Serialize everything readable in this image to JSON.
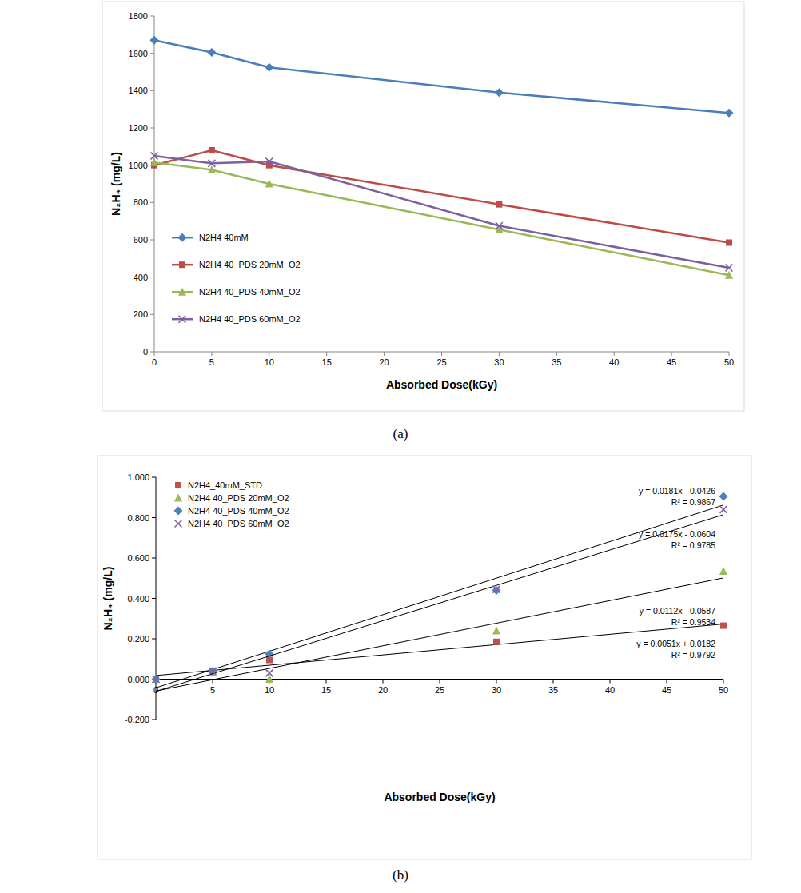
{
  "chart_data": [
    {
      "type": "line",
      "caption": "(a)",
      "x_label": "Absorbed Dose(kGy)",
      "y_label": "N₂H₄ (mg/L)",
      "x": [
        0,
        5,
        10,
        30,
        50
      ],
      "xlim": [
        0,
        50
      ],
      "xticks": [
        0,
        5,
        10,
        15,
        20,
        25,
        30,
        35,
        40,
        45,
        50
      ],
      "ylim": [
        0,
        1800
      ],
      "yticks": [
        0,
        200,
        400,
        600,
        800,
        1000,
        1200,
        1400,
        1600,
        1800
      ],
      "grid": false,
      "legend": "left",
      "series": [
        {
          "name": "N2H4 40mM",
          "color": "#4a7ebb",
          "marker": "diamond",
          "values": [
            1670,
            1605,
            1525,
            1390,
            1280
          ]
        },
        {
          "name": "N2H4 40_PDS 20mM_O2",
          "color": "#be4b48",
          "marker": "square",
          "values": [
            1000,
            1080,
            1000,
            790,
            585
          ]
        },
        {
          "name": "N2H4 40_PDS 40mM_O2",
          "color": "#98b954",
          "marker": "triangle",
          "values": [
            1015,
            975,
            900,
            655,
            410
          ]
        },
        {
          "name": "N2H4 40_PDS 60mM_O2",
          "color": "#7d60a0",
          "marker": "x",
          "values": [
            1050,
            1010,
            1020,
            675,
            450
          ]
        }
      ]
    },
    {
      "type": "scatter",
      "caption": "(b)",
      "x_label": "Absorbed Dose(kGy)",
      "y_label": "N₂H₄ (mg/L)",
      "x": [
        0,
        5,
        10,
        30,
        50
      ],
      "xlim": [
        0,
        50
      ],
      "xticks": [
        0,
        5,
        10,
        15,
        20,
        25,
        30,
        35,
        40,
        45,
        50
      ],
      "ylim": [
        -0.2,
        1.0
      ],
      "yticks": [
        {
          "value": -0.2,
          "label": "-0.200"
        },
        {
          "value": 0,
          "label": "0.000"
        },
        {
          "value": 0.2,
          "label": "0.200"
        },
        {
          "value": 0.4,
          "label": "0.400"
        },
        {
          "value": 0.6,
          "label": "0.600"
        },
        {
          "value": 0.8,
          "label": "0.800"
        },
        {
          "value": 1.0,
          "label": "1.000"
        }
      ],
      "grid": false,
      "legend": "top-left",
      "series": [
        {
          "name": "N2H4_40mM_STD",
          "color": "#c0504d",
          "marker": "square",
          "values": [
            0,
            0.04,
            0.095,
            0.185,
            0.265
          ],
          "trendline": {
            "slope": 0.0051,
            "intercept": 0.0182,
            "equation": "y = 0.0051x + 0.0182",
            "r2_label": "R² = 0.9792"
          }
        },
        {
          "name": "N2H4 40_PDS 20mM_O2",
          "color": "#9bbb59",
          "marker": "triangle",
          "values": [
            0,
            0.035,
            0.0,
            0.24,
            0.535
          ],
          "trendline": {
            "slope": 0.0112,
            "intercept": -0.0587,
            "equation": "y = 0.0112x - 0.0587",
            "r2_label": "R² = 0.9534"
          }
        },
        {
          "name": "N2H4 40_PDS 40mM_O2",
          "color": "#4f81bd",
          "marker": "diamond",
          "values": [
            0,
            0.04,
            0.125,
            0.44,
            0.905
          ],
          "trendline": {
            "slope": 0.0181,
            "intercept": -0.0426,
            "equation": "y = 0.0181x - 0.0426",
            "r2_label": "R² = 0.9867"
          }
        },
        {
          "name": "N2H4 40_PDS 60mM_O2",
          "color": "#8064a2",
          "marker": "x",
          "values": [
            0,
            0.04,
            0.03,
            0.445,
            0.84
          ],
          "trendline": {
            "slope": 0.0175,
            "intercept": -0.0604,
            "equation": "y = 0.0175x - 0.0604",
            "r2_label": "R² = 0.9785"
          }
        }
      ]
    }
  ]
}
